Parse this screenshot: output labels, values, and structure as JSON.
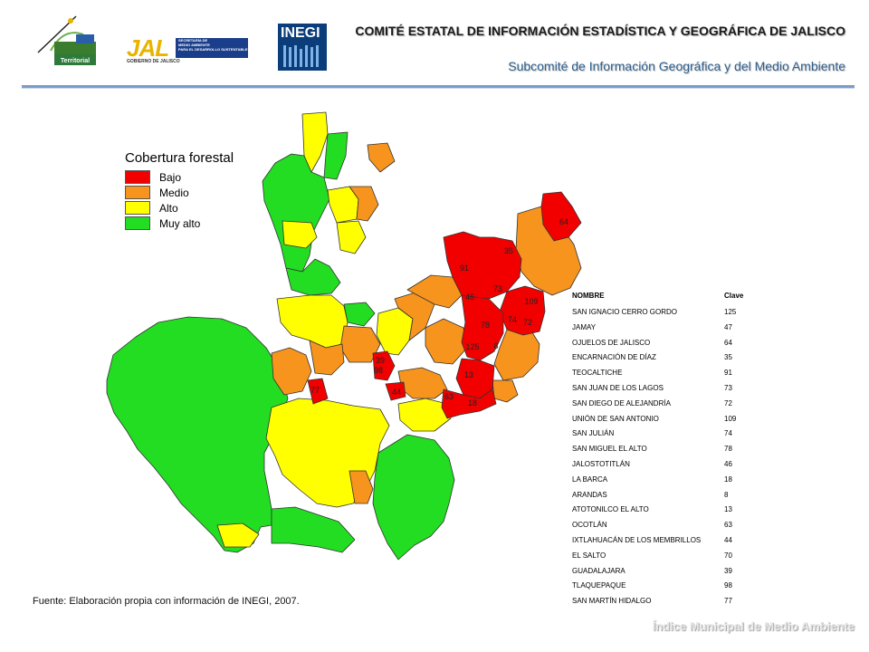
{
  "header": {
    "title": "COMITÉ ESTATAL DE INFORMACIÓN ESTADÍSTICA Y GEOGRÁFICA DE JALISCO",
    "subtitle": "Subcomité de Información Geográfica y del Medio Ambiente",
    "logos": {
      "territorial": "Territorial",
      "jal": "JAL",
      "jal_sub": "GOBIERNO DE JALISCO",
      "jal_box": [
        "SECRETARÍA DE",
        "MEDIO AMBIENTE",
        "PARA EL DESARROLLO SUSTENTABLE"
      ],
      "inegi": "INEGI"
    }
  },
  "legend": {
    "title": "Cobertura forestal",
    "items": [
      {
        "label": "Bajo",
        "color": "#f20000"
      },
      {
        "label": "Medio",
        "color": "#f7941d"
      },
      {
        "label": "Alto",
        "color": "#ffff00"
      },
      {
        "label": "Muy alto",
        "color": "#22dd22"
      }
    ]
  },
  "map_labels": [
    "64",
    "35",
    "91",
    "73",
    "46",
    "109",
    "74",
    "72",
    "78",
    "125",
    "8",
    "13",
    "63",
    "18",
    "39",
    "98",
    "77",
    "44"
  ],
  "table": {
    "headers": [
      "NOMBRE",
      "Clave"
    ],
    "rows": [
      [
        "SAN IGNACIO CERRO GORDO",
        "125"
      ],
      [
        "JAMAY",
        "47"
      ],
      [
        "OJUELOS DE JALISCO",
        "64"
      ],
      [
        "ENCARNACIÓN DE DÍAZ",
        "35"
      ],
      [
        "TEOCALTICHE",
        "91"
      ],
      [
        "SAN JUAN DE LOS LAGOS",
        "73"
      ],
      [
        "SAN DIEGO DE ALEJANDRÍA",
        "72"
      ],
      [
        "UNIÓN DE SAN ANTONIO",
        "109"
      ],
      [
        "SAN JULIÁN",
        "74"
      ],
      [
        "SAN MIGUEL EL ALTO",
        "78"
      ],
      [
        "JALOSTOTITLÁN",
        "46"
      ],
      [
        "LA BARCA",
        "18"
      ],
      [
        "ARANDAS",
        "8"
      ],
      [
        "ATOTONILCO EL ALTO",
        "13"
      ],
      [
        "OCOTLÁN",
        "63"
      ],
      [
        "IXTLAHUACÁN DE LOS MEMBRILLOS",
        "44"
      ],
      [
        "EL SALTO",
        "70"
      ],
      [
        "GUADALAJARA",
        "39"
      ],
      [
        "TLAQUEPAQUE",
        "98"
      ],
      [
        "SAN MARTÍN HIDALGO",
        "77"
      ]
    ]
  },
  "footer": {
    "source": "Fuente: Elaboración propia con información de INEGI, 2007.",
    "brand": "Índice Municipal de Medio Ambiente"
  }
}
